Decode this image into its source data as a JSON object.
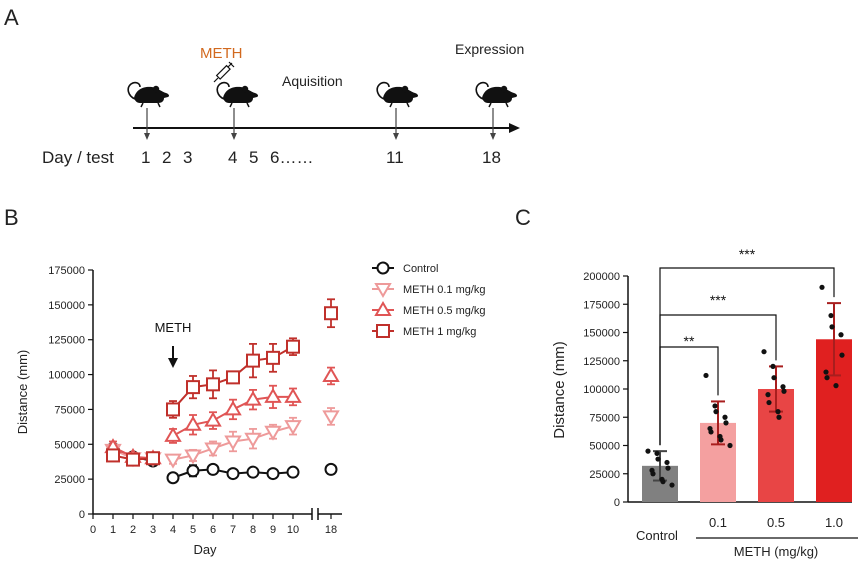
{
  "panel_a": {
    "label": "A",
    "meth_label": "METH",
    "acquisition_label": "Aquisition",
    "expression_label": "Expression",
    "day_test_label": "Day / test",
    "days": [
      "1",
      "2",
      "3",
      "4",
      "5",
      "6……",
      "11",
      "18"
    ],
    "meth_color": "#d2691e"
  },
  "panel_b": {
    "label": "B"
  },
  "panel_c": {
    "label": "C"
  },
  "chart_data": [
    {
      "id": "B",
      "type": "line",
      "title": "",
      "xlabel": "Day",
      "ylabel": "Distance (mm)",
      "ylim": [
        0,
        175000
      ],
      "yticks": [
        0,
        25000,
        50000,
        75000,
        100000,
        125000,
        150000,
        175000
      ],
      "xticks": [
        "0",
        "1",
        "2",
        "3",
        "4",
        "5",
        "6",
        "7",
        "8",
        "9",
        "10",
        "18"
      ],
      "annotation": "METH",
      "annotation_day": 4,
      "legend_position": "top-right",
      "series": [
        {
          "name": "Control",
          "color": "#111111",
          "marker": "circle",
          "x": [
            1,
            2,
            3,
            4,
            5,
            6,
            7,
            8,
            9,
            10,
            18
          ],
          "values": [
            47000,
            41000,
            38000,
            26000,
            31000,
            32000,
            29000,
            30000,
            29000,
            30000,
            32000
          ],
          "err": [
            3000,
            3000,
            3000,
            2000,
            4000,
            3000,
            2000,
            2000,
            2000,
            2000,
            2000
          ]
        },
        {
          "name": "METH 0.1 mg/kg",
          "color": "#ee9a9a",
          "marker": "triangle-down",
          "x": [
            1,
            2,
            3,
            4,
            5,
            6,
            7,
            8,
            9,
            10,
            18
          ],
          "values": [
            46000,
            40000,
            40000,
            39000,
            42000,
            47000,
            52000,
            54000,
            59000,
            63000,
            70000
          ],
          "err": [
            4000,
            3000,
            3000,
            3000,
            4000,
            5000,
            7000,
            7000,
            5000,
            6000,
            6000
          ]
        },
        {
          "name": "METH 0.5 mg/kg",
          "color": "#e05555",
          "marker": "triangle-up",
          "x": [
            1,
            2,
            3,
            4,
            5,
            6,
            7,
            8,
            9,
            10,
            18
          ],
          "values": [
            48000,
            41000,
            40000,
            56000,
            64000,
            67000,
            75000,
            82000,
            84000,
            84000,
            99000
          ],
          "err": [
            4000,
            3000,
            3000,
            5000,
            7000,
            6000,
            7000,
            7000,
            8000,
            6000,
            6000
          ]
        },
        {
          "name": "METH    1 mg/kg",
          "color": "#c0302b",
          "marker": "square",
          "x": [
            1,
            2,
            3,
            4,
            5,
            6,
            7,
            8,
            9,
            10,
            18
          ],
          "values": [
            42000,
            39000,
            40000,
            75000,
            91000,
            93000,
            98000,
            110000,
            112000,
            120000,
            144000
          ],
          "err": [
            4000,
            3000,
            3000,
            6000,
            8000,
            10000,
            3000,
            12000,
            10000,
            6000,
            10000
          ]
        }
      ]
    },
    {
      "id": "C",
      "type": "bar",
      "title": "",
      "xlabel": "METH (mg/kg)",
      "ylabel": "Distance (mm)",
      "ylim": [
        0,
        200000
      ],
      "yticks": [
        0,
        25000,
        50000,
        75000,
        100000,
        125000,
        150000,
        175000,
        200000
      ],
      "categories": [
        "Control",
        "0.1",
        "0.5",
        "1.0"
      ],
      "values": [
        32000,
        70000,
        100000,
        144000
      ],
      "err": [
        13000,
        19000,
        20000,
        32000
      ],
      "colors": [
        "#808080",
        "#f4a0a0",
        "#e84545",
        "#e02020"
      ],
      "points": [
        [
          45000,
          43000,
          38000,
          35000,
          30000,
          28000,
          25000,
          20000,
          18000,
          15000
        ],
        [
          112000,
          85000,
          80000,
          75000,
          70000,
          65000,
          62000,
          58000,
          55000,
          50000
        ],
        [
          133000,
          120000,
          110000,
          102000,
          98000,
          95000,
          88000,
          80000,
          75000
        ],
        [
          190000,
          165000,
          155000,
          148000,
          130000,
          115000,
          110000,
          103000
        ]
      ],
      "significance": [
        {
          "from": "Control",
          "to": "0.1",
          "label": "**"
        },
        {
          "from": "Control",
          "to": "0.5",
          "label": "***"
        },
        {
          "from": "Control",
          "to": "1.0",
          "label": "***"
        }
      ]
    }
  ]
}
